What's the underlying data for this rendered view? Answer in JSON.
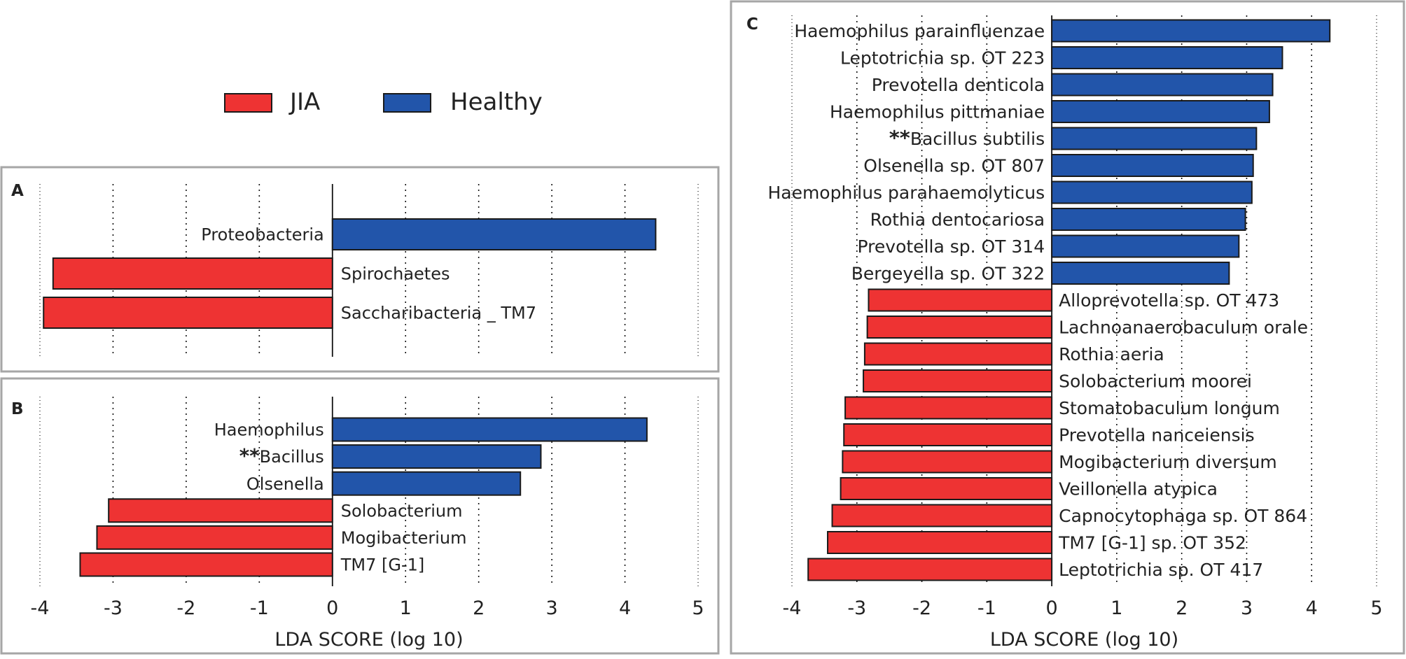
{
  "legend": {
    "items": [
      {
        "label": "JIA",
        "color": "#ee3333"
      },
      {
        "label": "Healthy",
        "color": "#2255aa"
      }
    ]
  },
  "colors": {
    "jia": "#ee3333",
    "healthy": "#2255aa",
    "frame": "#a6a6a6",
    "text": "#222222"
  },
  "chart_data": [
    {
      "panel": "A",
      "type": "bar",
      "orientation": "horizontal",
      "xlabel": "",
      "xlim": [
        -4,
        5
      ],
      "xticks": [],
      "series": [
        {
          "name": "Healthy",
          "categories": [
            "Proteobacteria"
          ],
          "values": [
            4.42
          ]
        },
        {
          "name": "JIA",
          "categories": [
            "Spirochaetes",
            "Saccharibacteria _ TM7"
          ],
          "values": [
            -3.82,
            -3.95
          ]
        }
      ],
      "annotations": []
    },
    {
      "panel": "B",
      "type": "bar",
      "orientation": "horizontal",
      "xlabel": "LDA SCORE (log 10)",
      "xlim": [
        -4,
        5
      ],
      "xticks": [
        "-4",
        "-3",
        "-2",
        "-1",
        "0",
        "1",
        "2",
        "3",
        "4",
        "5"
      ],
      "series": [
        {
          "name": "Healthy",
          "categories": [
            "Haemophilus",
            "Bacillus",
            "Olsenella"
          ],
          "values": [
            4.3,
            2.85,
            2.57
          ]
        },
        {
          "name": "JIA",
          "categories": [
            "Solobacterium",
            "Mogibacterium",
            "TM7 [G-1]"
          ],
          "values": [
            -3.06,
            -3.22,
            -3.45
          ]
        }
      ],
      "annotations": [
        {
          "category": "Bacillus",
          "text": "**"
        }
      ]
    },
    {
      "panel": "C",
      "type": "bar",
      "orientation": "horizontal",
      "xlabel": "LDA SCORE (log 10)",
      "xlim": [
        -4,
        5
      ],
      "xticks": [
        "-4",
        "-3",
        "-2",
        "-1",
        "0",
        "1",
        "2",
        "3",
        "4",
        "5"
      ],
      "series": [
        {
          "name": "Healthy",
          "categories": [
            "Haemophilus parainfluenzae",
            "Leptotrichia sp. OT 223",
            "Prevotella denticola",
            "Haemophilus pittmaniae",
            "Bacillus subtilis",
            "Olsenella sp. OT 807",
            "Haemophilus parahaemolyticus",
            "Rothia dentocariosa",
            "Prevotella sp. OT 314",
            "Bergeyella sp. OT 322"
          ],
          "values": [
            4.28,
            3.55,
            3.4,
            3.35,
            3.15,
            3.1,
            3.08,
            2.98,
            2.88,
            2.73
          ]
        },
        {
          "name": "JIA",
          "categories": [
            "Alloprevotella sp. OT 473",
            "Lachnoanaerobaculum orale",
            "Rothia aeria",
            "Solobacterium moorei",
            "Stomatobaculum longum",
            "Prevotella nanceiensis",
            "Mogibacterium diversum",
            "Veillonella atypica",
            "Capnocytophaga sp. OT 864",
            "TM7 [G-1] sp. OT 352",
            "Leptotrichia sp. OT 417"
          ],
          "values": [
            -2.82,
            -2.84,
            -2.88,
            -2.9,
            -3.18,
            -3.2,
            -3.22,
            -3.25,
            -3.38,
            -3.45,
            -3.75
          ]
        }
      ],
      "annotations": [
        {
          "category": "Bacillus subtilis",
          "text": "**"
        }
      ]
    }
  ]
}
